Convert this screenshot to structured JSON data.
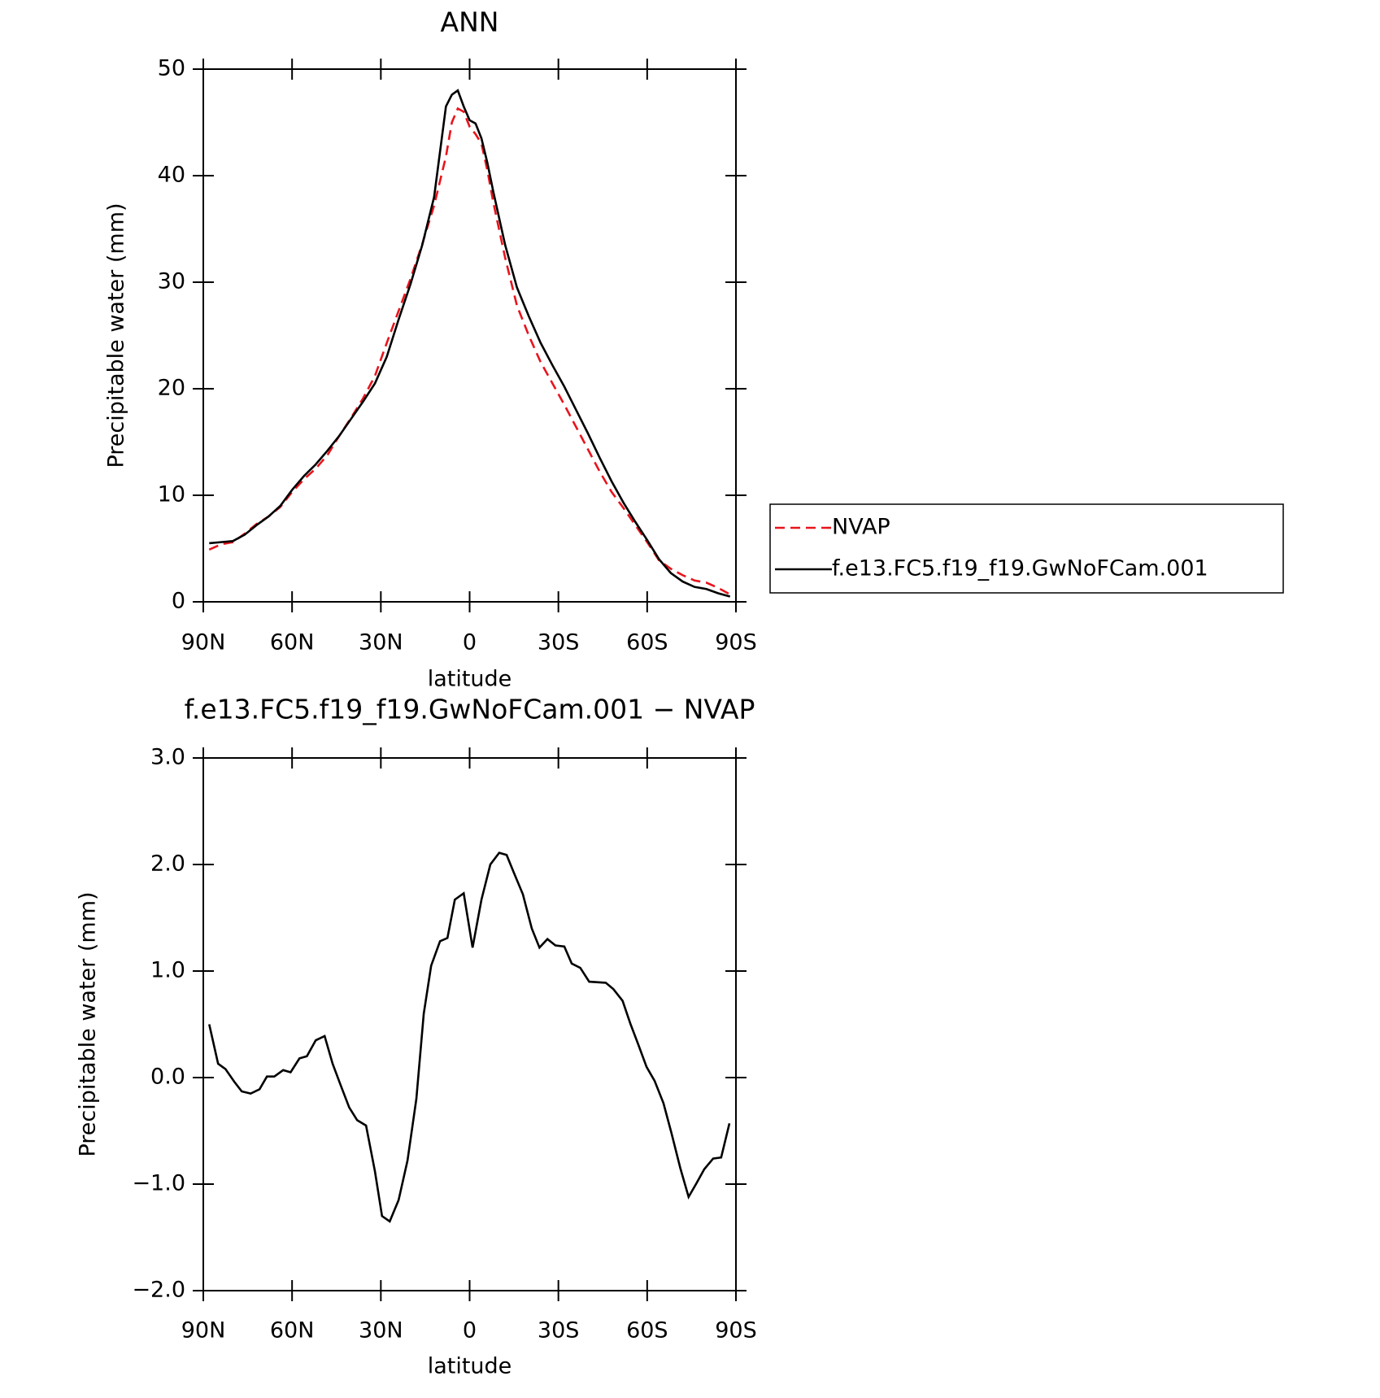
{
  "chart_data": [
    {
      "type": "line",
      "title": "ANN",
      "x_label": "latitude",
      "y_label": "Precipitable water (mm)",
      "x": [
        88,
        84,
        80,
        76,
        72,
        68,
        64,
        60,
        56,
        52,
        48,
        44,
        40,
        36,
        32,
        28,
        24,
        20,
        16,
        12,
        8,
        6,
        4,
        2,
        0,
        -2,
        -4,
        -6,
        -8,
        -12,
        -16,
        -20,
        -24,
        -28,
        -32,
        -36,
        -40,
        -44,
        -48,
        -52,
        -56,
        -60,
        -64,
        -68,
        -72,
        -76,
        -80,
        -84,
        -88
      ],
      "series": [
        {
          "name": "NVAP",
          "color": "#e8141c",
          "dash": true,
          "values": [
            4.9,
            5.4,
            5.6,
            6.4,
            7.3,
            8.0,
            8.9,
            10.3,
            11.5,
            12.5,
            13.8,
            15.6,
            17.3,
            19.1,
            21.2,
            24.3,
            27.3,
            30.3,
            33.6,
            37.2,
            41.8,
            45.0,
            46.3,
            46.0,
            44.6,
            43.9,
            43.0,
            40.5,
            37.5,
            32.3,
            27.8,
            25.0,
            22.5,
            20.5,
            18.5,
            16.4,
            14.3,
            12.2,
            10.3,
            8.8,
            7.2,
            5.6,
            3.9,
            3.1,
            2.5,
            2.0,
            1.8,
            1.3,
            0.7
          ]
        },
        {
          "name": "f.e13.FC5.f19_f19.GwNoFCam.001",
          "color": "#000000",
          "dash": false,
          "values": [
            5.5,
            5.6,
            5.7,
            6.3,
            7.2,
            8.0,
            9.0,
            10.5,
            11.8,
            12.9,
            14.2,
            15.6,
            17.2,
            18.8,
            20.5,
            23.0,
            26.5,
            29.8,
            33.5,
            38.0,
            46.5,
            47.6,
            48.0,
            46.5,
            45.2,
            44.9,
            43.5,
            41.2,
            38.5,
            33.5,
            29.5,
            26.8,
            24.3,
            22.2,
            20.2,
            18.0,
            15.8,
            13.5,
            11.3,
            9.3,
            7.5,
            5.8,
            4.0,
            2.7,
            1.9,
            1.4,
            1.2,
            0.8,
            0.5
          ]
        }
      ],
      "xlim": [
        90,
        -90
      ],
      "xticks": [
        {
          "value": 90,
          "label": "90N"
        },
        {
          "value": 60,
          "label": "60N"
        },
        {
          "value": 30,
          "label": "30N"
        },
        0,
        {
          "value": -30,
          "label": "30S"
        },
        {
          "value": -60,
          "label": "60S"
        },
        {
          "value": -90,
          "label": "90S"
        }
      ],
      "ylim": [
        0,
        50
      ],
      "yticks": [
        0,
        10,
        20,
        30,
        40,
        50
      ],
      "legend": "outside-right"
    },
    {
      "type": "line",
      "title": "f.e13.FC5.f19_f19.GwNoFCam.001 − NVAP",
      "x_label": "latitude",
      "y_label": "Precipitable water (mm)",
      "x": [
        88,
        85,
        82.5,
        79.5,
        77,
        74,
        71,
        68.5,
        66,
        63,
        60.5,
        57.5,
        55,
        52,
        49,
        46.3,
        43.6,
        40.7,
        38,
        35,
        32,
        29.6,
        27,
        24,
        21,
        18,
        15.5,
        13,
        10,
        7.5,
        5,
        2,
        -1,
        -4,
        -7,
        -10,
        -12.5,
        -15,
        -18,
        -21,
        -23.6,
        -26.3,
        -29,
        -32,
        -34.5,
        -37.4,
        -40.4,
        -46,
        -48.6,
        -51.7,
        -54.4,
        -57,
        -59.8,
        -62.5,
        -65.5,
        -68.2,
        -71.2,
        -74,
        -76.5,
        -79.3,
        -82.3,
        -85,
        -87.8
      ],
      "series": [
        {
          "color": "#000000",
          "dash": false,
          "values": [
            0.5,
            0.13,
            0.08,
            -0.04,
            -0.13,
            -0.15,
            -0.11,
            0.01,
            0.01,
            0.07,
            0.05,
            0.18,
            0.2,
            0.35,
            0.39,
            0.13,
            -0.07,
            -0.28,
            -0.4,
            -0.45,
            -0.88,
            -1.3,
            -1.35,
            -1.15,
            -0.78,
            -0.2,
            0.6,
            1.05,
            1.28,
            1.31,
            1.67,
            1.73,
            1.22,
            1.67,
            2.0,
            2.11,
            2.09,
            1.92,
            1.72,
            1.4,
            1.22,
            1.3,
            1.24,
            1.23,
            1.07,
            1.03,
            0.9,
            0.89,
            0.83,
            0.72,
            0.5,
            0.31,
            0.1,
            -0.03,
            -0.24,
            -0.52,
            -0.85,
            -1.12,
            -1.0,
            -0.86,
            -0.76,
            -0.75,
            -0.43
          ]
        }
      ],
      "xlim": [
        90,
        -90
      ],
      "xticks": [
        {
          "value": 90,
          "label": "90N"
        },
        {
          "value": 60,
          "label": "60N"
        },
        {
          "value": 30,
          "label": "30N"
        },
        0,
        {
          "value": -30,
          "label": "30S"
        },
        {
          "value": -60,
          "label": "60S"
        },
        {
          "value": -90,
          "label": "90S"
        }
      ],
      "ylim": [
        -2,
        3
      ],
      "yticks": [
        {
          "value": -2,
          "label": "−2.0"
        },
        {
          "value": -1,
          "label": "−1.0"
        },
        {
          "value": 0,
          "label": "0.0"
        },
        {
          "value": 1,
          "label": "1.0"
        },
        {
          "value": 2,
          "label": "2.0"
        },
        {
          "value": 3,
          "label": "3.0"
        }
      ]
    }
  ]
}
